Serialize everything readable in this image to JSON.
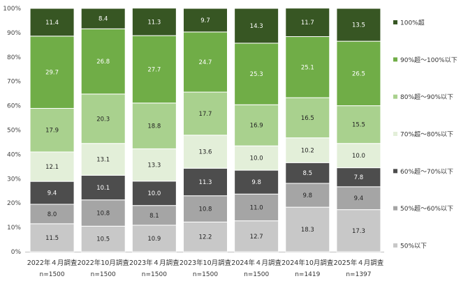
{
  "chart_data": {
    "type": "bar",
    "stacked": true,
    "orientation": "vertical",
    "ylim": [
      0,
      100
    ],
    "yticks": [
      "0%",
      "10%",
      "20%",
      "30%",
      "40%",
      "50%",
      "60%",
      "70%",
      "80%",
      "90%",
      "100%"
    ],
    "categories": [
      "2022年４月調査",
      "2022年10月調査",
      "2023年４月調査",
      "2023年10月調査",
      "2024年４月調査",
      "2024年10月調査",
      "2025年４月調査"
    ],
    "n_labels": [
      "n=1500",
      "n=1500",
      "n=1500",
      "n=1500",
      "n=1500",
      "n=1419",
      "n=1397"
    ],
    "series": [
      {
        "name": "50%以下",
        "color": "#c8c8c8",
        "text_color": "#222222",
        "values": [
          11.5,
          10.5,
          10.9,
          12.2,
          12.7,
          18.3,
          17.3
        ]
      },
      {
        "name": "50%超～60%以下",
        "color": "#a5a5a5",
        "text_color": "#222222",
        "values": [
          8.0,
          10.8,
          8.1,
          10.8,
          11.0,
          9.8,
          9.4
        ]
      },
      {
        "name": "60%超～70%以下",
        "color": "#4d4d4d",
        "text_color": "#ffffff",
        "values": [
          9.4,
          10.1,
          10.0,
          11.3,
          9.8,
          8.5,
          7.8
        ]
      },
      {
        "name": "70%超～80%以下",
        "color": "#e3efd9",
        "text_color": "#222222",
        "values": [
          12.1,
          13.1,
          13.3,
          13.6,
          10.0,
          10.2,
          10.0
        ]
      },
      {
        "name": "80%超～90%以下",
        "color": "#a9d18e",
        "text_color": "#222222",
        "values": [
          17.9,
          20.3,
          18.8,
          17.7,
          16.9,
          16.5,
          15.5
        ]
      },
      {
        "name": "90%超～100%以下",
        "color": "#70ad47",
        "text_color": "#ffffff",
        "values": [
          29.7,
          26.8,
          27.7,
          24.7,
          25.3,
          25.1,
          26.5
        ]
      },
      {
        "name": "100%超",
        "color": "#375623",
        "text_color": "#ffffff",
        "values": [
          11.4,
          8.4,
          11.3,
          9.7,
          14.3,
          11.7,
          13.5
        ]
      }
    ],
    "legend_position": "right",
    "grid": false
  }
}
